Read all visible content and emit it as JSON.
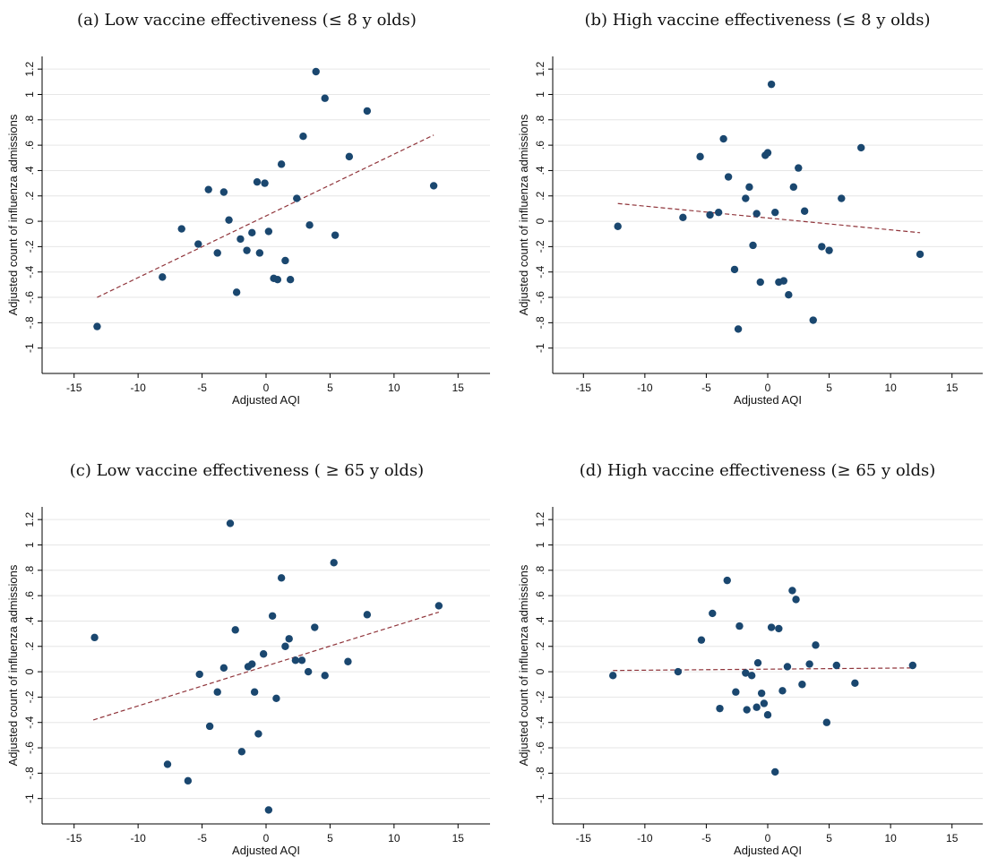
{
  "colors": {
    "point": "#1a476f",
    "fit_line": "#90353b",
    "grid": "#e6e6e6",
    "axis": "#000000"
  },
  "chart_data": [
    {
      "type": "scatter",
      "title": "(a) Low vaccine effectiveness (≤ 8 y olds)",
      "xlabel": "Adjusted AQI",
      "ylabel": "Adjusted count of influenza admissions",
      "xlim": [
        -17.5,
        17.5
      ],
      "ylim": [
        -1.2,
        1.3
      ],
      "x_ticks": [
        -15,
        -10,
        -5,
        0,
        5,
        10,
        15
      ],
      "x_tick_labels": [
        "-15",
        "-10",
        "-5",
        "0",
        "5",
        "10",
        "15"
      ],
      "y_ticks": [
        -1,
        -0.8,
        -0.6,
        -0.4,
        -0.2,
        0,
        0.2,
        0.4,
        0.6,
        0.8,
        1,
        1.2
      ],
      "y_tick_labels": [
        "-1",
        "-.8",
        "-.6",
        "-.4",
        "-.2",
        "0",
        ".2",
        ".4",
        ".6",
        ".8",
        "1",
        "1.2"
      ],
      "grid": true,
      "fit_line": {
        "x": [
          -13.2,
          13.1
        ],
        "y": [
          -0.6,
          0.68
        ]
      },
      "points": {
        "x": [
          3.9,
          4.6,
          7.9,
          2.9,
          6.5,
          1.2,
          -4.5,
          -3.3,
          -0.7,
          -0.1,
          2.4,
          13.1,
          -2.9,
          -6.6,
          -2.0,
          -1.1,
          0.2,
          -5.3,
          -3.8,
          -1.5,
          -0.5,
          3.4,
          5.4,
          1.5,
          -8.1,
          0.6,
          0.9,
          1.9,
          -2.3,
          -13.2
        ],
        "y": [
          1.18,
          0.97,
          0.87,
          0.67,
          0.51,
          0.45,
          0.25,
          0.23,
          0.31,
          0.3,
          0.18,
          0.28,
          0.01,
          -0.06,
          -0.14,
          -0.09,
          -0.08,
          -0.18,
          -0.25,
          -0.23,
          -0.25,
          -0.03,
          -0.11,
          -0.31,
          -0.44,
          -0.45,
          -0.46,
          -0.46,
          -0.56,
          -0.83
        ]
      }
    },
    {
      "type": "scatter",
      "title": "(b) High vaccine effectiveness (≤ 8 y olds)",
      "xlabel": "Adjusted AQI",
      "ylabel": "Adjusted count of influenza admissions",
      "xlim": [
        -17.5,
        17.5
      ],
      "ylim": [
        -1.2,
        1.3
      ],
      "x_ticks": [
        -15,
        -10,
        -5,
        0,
        5,
        10,
        15
      ],
      "x_tick_labels": [
        "-15",
        "-10",
        "-5",
        "0",
        "5",
        "10",
        "15"
      ],
      "y_ticks": [
        -1,
        -0.8,
        -0.6,
        -0.4,
        -0.2,
        0,
        0.2,
        0.4,
        0.6,
        0.8,
        1,
        1.2
      ],
      "y_tick_labels": [
        "-1",
        "-.8",
        "-.6",
        "-.4",
        "-.2",
        "0",
        ".2",
        ".4",
        ".6",
        ".8",
        "1",
        "1.2"
      ],
      "grid": true,
      "fit_line": {
        "x": [
          -12.2,
          12.4
        ],
        "y": [
          0.14,
          -0.09
        ]
      },
      "points": {
        "x": [
          0.3,
          -3.6,
          7.6,
          -5.5,
          -0.2,
          0.0,
          2.5,
          -3.2,
          -1.5,
          2.1,
          6.0,
          -1.8,
          3.0,
          0.6,
          -4.0,
          -0.9,
          -6.9,
          -4.7,
          -12.2,
          -1.2,
          4.4,
          5.0,
          12.4,
          -2.7,
          1.3,
          0.9,
          -0.6,
          1.7,
          3.7,
          -2.4
        ],
        "y": [
          1.08,
          0.65,
          0.58,
          0.51,
          0.52,
          0.54,
          0.42,
          0.35,
          0.27,
          0.27,
          0.18,
          0.18,
          0.08,
          0.07,
          0.07,
          0.06,
          0.03,
          0.05,
          -0.04,
          -0.19,
          -0.2,
          -0.23,
          -0.26,
          -0.38,
          -0.47,
          -0.48,
          -0.48,
          -0.58,
          -0.78,
          -0.85
        ]
      }
    },
    {
      "type": "scatter",
      "title": "(c) Low vaccine effectiveness ( ≥ 65 y olds)",
      "xlabel": "Adjusted AQI",
      "ylabel": "Adjusted count of influenza admissions",
      "xlim": [
        -17.5,
        17.5
      ],
      "ylim": [
        -1.2,
        1.3
      ],
      "x_ticks": [
        -15,
        -10,
        -5,
        0,
        5,
        10,
        15
      ],
      "x_tick_labels": [
        "-15",
        "-10",
        "-5",
        "0",
        "5",
        "10",
        "15"
      ],
      "y_ticks": [
        -1,
        -0.8,
        -0.6,
        -0.4,
        -0.2,
        0,
        0.2,
        0.4,
        0.6,
        0.8,
        1,
        1.2
      ],
      "y_tick_labels": [
        "-1",
        "-.8",
        "-.6",
        "-.4",
        "-.2",
        "0",
        ".2",
        ".4",
        ".6",
        ".8",
        "1",
        "1.2"
      ],
      "grid": true,
      "fit_line": {
        "x": [
          -13.5,
          13.5
        ],
        "y": [
          -0.38,
          0.47
        ]
      },
      "points": {
        "x": [
          -2.8,
          5.3,
          1.2,
          13.5,
          7.9,
          0.5,
          -13.4,
          3.8,
          -2.4,
          1.5,
          1.8,
          -0.2,
          -1.4,
          2.3,
          -1.1,
          2.8,
          -3.3,
          3.3,
          -5.2,
          4.6,
          -0.9,
          6.4,
          0.8,
          -3.8,
          -4.4,
          -0.6,
          -1.9,
          -7.7,
          -6.1,
          0.2
        ],
        "y": [
          1.17,
          0.86,
          0.74,
          0.52,
          0.45,
          0.44,
          0.27,
          0.35,
          0.33,
          0.2,
          0.26,
          0.14,
          0.04,
          0.09,
          0.06,
          0.09,
          0.03,
          0.0,
          -0.02,
          -0.03,
          -0.16,
          0.08,
          -0.21,
          -0.16,
          -0.43,
          -0.49,
          -0.63,
          -0.73,
          -0.86,
          -1.09
        ]
      }
    },
    {
      "type": "scatter",
      "title": "(d) High vaccine effectiveness (≥ 65 y olds)",
      "xlabel": "Adjusted AQI",
      "ylabel": "Adjusted count of influenza admissions",
      "xlim": [
        -17.5,
        17.5
      ],
      "ylim": [
        -1.2,
        1.3
      ],
      "x_ticks": [
        -15,
        -10,
        -5,
        0,
        5,
        10,
        15
      ],
      "x_tick_labels": [
        "-15",
        "-10",
        "-5",
        "0",
        "5",
        "10",
        "15"
      ],
      "y_ticks": [
        -1,
        -0.8,
        -0.6,
        -0.4,
        -0.2,
        0,
        0.2,
        0.4,
        0.6,
        0.8,
        1,
        1.2
      ],
      "y_tick_labels": [
        "-1",
        "-.8",
        "-.6",
        "-.4",
        "-.2",
        "0",
        ".2",
        ".4",
        ".6",
        ".8",
        "1",
        "1.2"
      ],
      "grid": true,
      "fit_line": {
        "x": [
          -12.6,
          11.8
        ],
        "y": [
          0.01,
          0.03
        ]
      },
      "points": {
        "x": [
          -3.3,
          2.0,
          2.3,
          -4.5,
          -2.3,
          0.3,
          0.9,
          -5.4,
          3.9,
          -0.8,
          3.4,
          5.6,
          11.8,
          1.6,
          -12.6,
          -7.3,
          -1.8,
          -1.3,
          7.1,
          2.8,
          -2.6,
          -0.5,
          1.2,
          -0.3,
          -0.9,
          0.0,
          -1.7,
          -3.9,
          4.8,
          0.6
        ],
        "y": [
          0.72,
          0.64,
          0.57,
          0.46,
          0.36,
          0.35,
          0.34,
          0.25,
          0.21,
          0.07,
          0.06,
          0.05,
          0.05,
          0.04,
          -0.03,
          0.0,
          -0.01,
          -0.03,
          -0.09,
          -0.1,
          -0.16,
          -0.17,
          -0.15,
          -0.25,
          -0.28,
          -0.34,
          -0.3,
          -0.29,
          -0.4,
          -0.79
        ]
      }
    }
  ]
}
